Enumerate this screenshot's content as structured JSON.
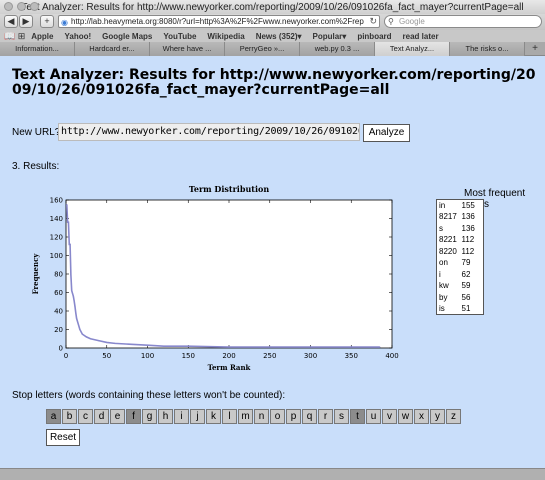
{
  "window": {
    "title": "Text Analyzer: Results for http://www.newyorker.com/reporting/2009/10/26/091026fa_fact_mayer?currentPage=all"
  },
  "toolbar": {
    "back": "◀",
    "forward": "▶",
    "add": "+",
    "url": "http://lab.heavymeta.org:8080/r?url=http%3A%2F%2Fwww.newyorker.com%2Frep",
    "search_placeholder": "Google"
  },
  "bookmarks": {
    "items": [
      "Apple",
      "Yahoo!",
      "Google Maps",
      "YouTube",
      "Wikipedia",
      "News (352)▾",
      "Popular▾",
      "pinboard",
      "read later"
    ]
  },
  "tabs": [
    {
      "label": "Information..."
    },
    {
      "label": "Hardcard er..."
    },
    {
      "label": "Where have ..."
    },
    {
      "label": "PerryGeo »..."
    },
    {
      "label": "web.py 0.3 ..."
    },
    {
      "label": "Text Analyz..."
    },
    {
      "label": "The risks o..."
    }
  ],
  "page": {
    "heading": "Text Analyzer: Results for http://www.newyorker.com/reporting/2009/10/26/091026fa_fact_mayer?currentPage=all",
    "new_url_label": "New URL?",
    "new_url_value": "http://www.newyorker.com/reporting/2009/10/26/091026fa_f",
    "analyze_label": "Analyze",
    "results_label": "3. Results:",
    "mft_title": "Most frequent terms",
    "terms": [
      {
        "term": "in",
        "count": "155"
      },
      {
        "term": "8217",
        "count": "136"
      },
      {
        "term": "s",
        "count": "136"
      },
      {
        "term": "8221",
        "count": "112"
      },
      {
        "term": "8220",
        "count": "112"
      },
      {
        "term": "on",
        "count": "79"
      },
      {
        "term": "i",
        "count": "62"
      },
      {
        "term": "kw",
        "count": "59"
      },
      {
        "term": "by",
        "count": "56"
      },
      {
        "term": "is",
        "count": "51"
      }
    ],
    "stop_label": "Stop letters (words containing these letters won't be counted):",
    "letters": [
      {
        "l": "a",
        "on": true
      },
      {
        "l": "b",
        "on": false
      },
      {
        "l": "c",
        "on": false
      },
      {
        "l": "d",
        "on": false
      },
      {
        "l": "e",
        "on": false
      },
      {
        "l": "f",
        "on": true
      },
      {
        "l": "g",
        "on": false
      },
      {
        "l": "h",
        "on": false
      },
      {
        "l": "i",
        "on": false
      },
      {
        "l": "j",
        "on": false
      },
      {
        "l": "k",
        "on": false
      },
      {
        "l": "l",
        "on": false
      },
      {
        "l": "m",
        "on": false
      },
      {
        "l": "n",
        "on": false
      },
      {
        "l": "o",
        "on": false
      },
      {
        "l": "p",
        "on": false
      },
      {
        "l": "q",
        "on": false
      },
      {
        "l": "r",
        "on": false
      },
      {
        "l": "s",
        "on": false
      },
      {
        "l": "t",
        "on": true
      },
      {
        "l": "u",
        "on": false
      },
      {
        "l": "v",
        "on": false
      },
      {
        "l": "w",
        "on": false
      },
      {
        "l": "x",
        "on": false
      },
      {
        "l": "y",
        "on": false
      },
      {
        "l": "z",
        "on": false
      }
    ],
    "reset_label": "Reset"
  },
  "chart_data": {
    "type": "line",
    "title": "Term Distribution",
    "xlabel": "Term Rank",
    "ylabel": "Frequency",
    "xlim": [
      0,
      400
    ],
    "ylim": [
      0,
      160
    ],
    "xticks": [
      0,
      50,
      100,
      150,
      200,
      250,
      300,
      350,
      400
    ],
    "yticks": [
      0,
      20,
      40,
      60,
      80,
      100,
      120,
      140,
      160
    ],
    "grid": false,
    "color": "#8888cc",
    "x": [
      1,
      2,
      3,
      4,
      5,
      6,
      7,
      8,
      9,
      10,
      11,
      12,
      13,
      15,
      17,
      20,
      25,
      30,
      40,
      50,
      60,
      80,
      100,
      120,
      150,
      200,
      250,
      300,
      350,
      385
    ],
    "y": [
      155,
      136,
      136,
      112,
      112,
      79,
      62,
      59,
      56,
      51,
      45,
      38,
      32,
      26,
      20,
      15,
      12,
      10,
      8,
      6,
      5,
      4,
      3,
      2,
      2,
      1,
      1,
      1,
      1,
      1
    ]
  }
}
